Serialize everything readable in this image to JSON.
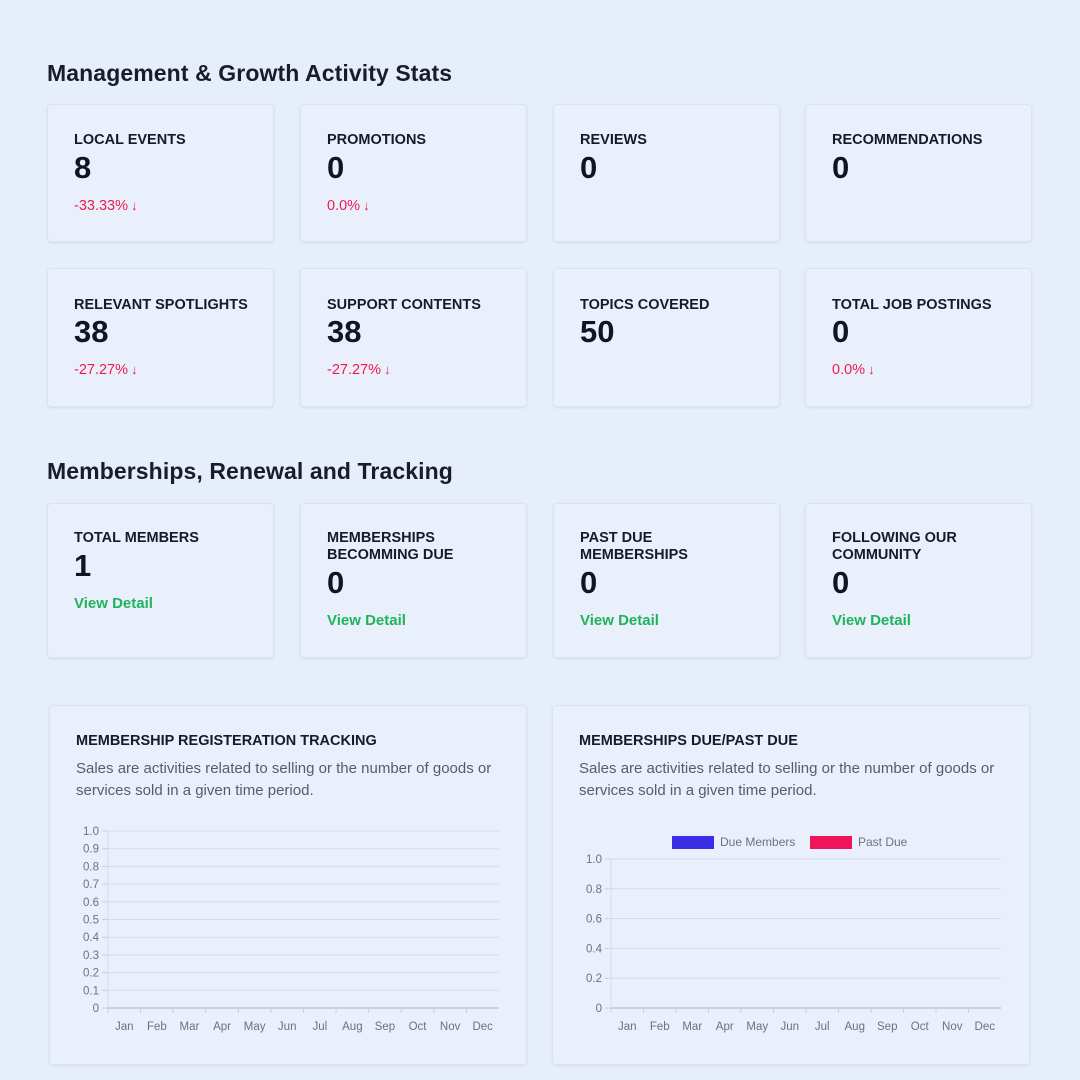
{
  "sections": {
    "management_title": "Management & Growth Activity Stats",
    "memberships_title": "Memberships, Renewal and Tracking"
  },
  "management_stats": [
    {
      "label": "LOCAL EVENTS",
      "value": "8",
      "change": "-33.33%"
    },
    {
      "label": "PROMOTIONS",
      "value": "0",
      "change": "0.0%"
    },
    {
      "label": "REVIEWS",
      "value": "0",
      "change": ""
    },
    {
      "label": "RECOMMENDATIONS",
      "value": "0",
      "change": ""
    },
    {
      "label": "RELEVANT SPOTLIGHTS",
      "value": "38",
      "change": "-27.27%"
    },
    {
      "label": "SUPPORT CONTENTS",
      "value": "38",
      "change": "-27.27%"
    },
    {
      "label": "TOPICS COVERED",
      "value": "50",
      "change": ""
    },
    {
      "label": "TOTAL JOB POSTINGS",
      "value": "0",
      "change": "0.0%"
    }
  ],
  "membership_stats": [
    {
      "label": "TOTAL MEMBERS",
      "value": "1",
      "link": "View Detail"
    },
    {
      "label": "MEMBERSHIPS BECOMMING DUE",
      "value": "0",
      "link": "View Detail"
    },
    {
      "label": "PAST DUE MEMBERSHIPS",
      "value": "0",
      "link": "View Detail"
    },
    {
      "label": "FOLLOWING OUR COMMUNITY",
      "value": "0",
      "link": "View Detail"
    }
  ],
  "colors": {
    "negative": "#ef1a4e",
    "link": "#21b25c",
    "due_members": "#3a2ee8",
    "past_due": "#f0145a"
  },
  "icons": {
    "change": "arrow-down-icon"
  },
  "chart_data": [
    {
      "type": "bar",
      "title": "MEMBERSHIP REGISTERATION TRACKING",
      "description": "Sales are activities related to selling or the number of goods or services sold in a given time period.",
      "categories": [
        "Jan",
        "Feb",
        "Mar",
        "Apr",
        "May",
        "Jun",
        "Jul",
        "Aug",
        "Sep",
        "Oct",
        "Nov",
        "Dec"
      ],
      "y_ticks": [
        "0",
        "0.1",
        "0.2",
        "0.3",
        "0.4",
        "0.5",
        "0.6",
        "0.7",
        "0.8",
        "0.9",
        "1.0"
      ],
      "ylim": [
        0,
        1
      ],
      "series": [],
      "grid": true
    },
    {
      "type": "bar",
      "title": "MEMBERSHIPS DUE/PAST DUE",
      "description": "Sales are activities related to selling or the number of goods or services sold in a given time period.",
      "categories": [
        "Jan",
        "Feb",
        "Mar",
        "Apr",
        "May",
        "Jun",
        "Jul",
        "Aug",
        "Sep",
        "Oct",
        "Nov",
        "Dec"
      ],
      "y_ticks": [
        "0",
        "0.2",
        "0.4",
        "0.6",
        "0.8",
        "1.0"
      ],
      "ylim": [
        0,
        1
      ],
      "series": [
        {
          "name": "Due Members",
          "values": [
            0,
            0,
            0,
            0,
            0,
            0,
            0,
            0,
            0,
            0,
            0,
            0
          ]
        },
        {
          "name": "Past Due",
          "values": [
            0,
            0,
            0,
            0,
            0,
            0,
            0,
            0,
            0,
            0,
            0,
            0
          ]
        }
      ],
      "legend": "top",
      "grid": true
    }
  ]
}
